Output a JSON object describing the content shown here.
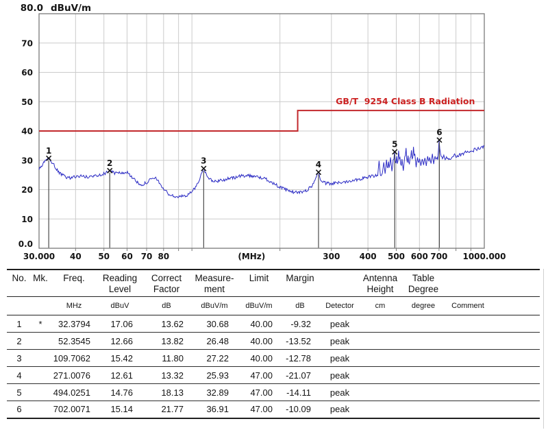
{
  "chart_data": {
    "type": "line",
    "title": "",
    "y_axis": {
      "label_top": "80.0",
      "unit": "dBuV/m",
      "min": 0,
      "max": 80,
      "step": 10,
      "tick_labels": [
        "70",
        "60",
        "50",
        "40",
        "30",
        "20",
        "10"
      ],
      "zero_label": "0.0"
    },
    "x_axis": {
      "scale": "log",
      "min": 30,
      "max": 1000,
      "unit_label": "(MHz)",
      "unit_label_freq": 160,
      "ticks": [
        {
          "f": 30,
          "label": "30.000"
        },
        {
          "f": 40,
          "label": "40"
        },
        {
          "f": 50,
          "label": "50"
        },
        {
          "f": 60,
          "label": "60"
        },
        {
          "f": 70,
          "label": "70"
        },
        {
          "f": 80,
          "label": "80"
        },
        {
          "f": 300,
          "label": "300"
        },
        {
          "f": 400,
          "label": "400"
        },
        {
          "f": 500,
          "label": "500"
        },
        {
          "f": 600,
          "label": "600"
        },
        {
          "f": 700,
          "label": "700"
        },
        {
          "f": 1000,
          "label": "1000.000"
        }
      ],
      "grid_freqs": [
        40,
        50,
        60,
        70,
        80,
        90,
        100,
        200,
        300,
        400,
        500,
        600,
        700,
        800,
        900
      ]
    },
    "grid": true,
    "limit_line": {
      "label": "GB/T  9254 Class B Radiation",
      "color": "#c2282c",
      "label_color": "#cc2222",
      "segments": [
        {
          "from": 30,
          "to": 230,
          "level": 40
        },
        {
          "from": 230,
          "to": 1000,
          "level": 47
        }
      ]
    },
    "trace": {
      "color": "#2b2bc4",
      "noise_db": 0.55,
      "anchors": [
        [
          30,
          26.8
        ],
        [
          31.3,
          29.3
        ],
        [
          32.38,
          30.68
        ],
        [
          33.6,
          28.6
        ],
        [
          35,
          25.8
        ],
        [
          36.5,
          24.6
        ],
        [
          38,
          24.0
        ],
        [
          40,
          24.4
        ],
        [
          42,
          24.7
        ],
        [
          44,
          24.2
        ],
        [
          46,
          24.6
        ],
        [
          48,
          25.1
        ],
        [
          50,
          25.4
        ],
        [
          52.35,
          26.48
        ],
        [
          54,
          25.7
        ],
        [
          56,
          25.6
        ],
        [
          58,
          25.8
        ],
        [
          60,
          25.9
        ],
        [
          62,
          24.6
        ],
        [
          64,
          23.0
        ],
        [
          66,
          22.0
        ],
        [
          68,
          21.8
        ],
        [
          70,
          22.4
        ],
        [
          72,
          23.3
        ],
        [
          74,
          23.9
        ],
        [
          76,
          23.6
        ],
        [
          78,
          21.8
        ],
        [
          80,
          20.2
        ],
        [
          83,
          18.6
        ],
        [
          86,
          17.8
        ],
        [
          90,
          17.5
        ],
        [
          94,
          17.8
        ],
        [
          98,
          18.6
        ],
        [
          102,
          20.2
        ],
        [
          106,
          23.4
        ],
        [
          109.7,
          27.22
        ],
        [
          112,
          25.2
        ],
        [
          116,
          23.2
        ],
        [
          120,
          22.8
        ],
        [
          126,
          23.2
        ],
        [
          133,
          23.7
        ],
        [
          140,
          24.1
        ],
        [
          147,
          24.6
        ],
        [
          154,
          24.9
        ],
        [
          161,
          24.7
        ],
        [
          170,
          24.2
        ],
        [
          180,
          23.5
        ],
        [
          190,
          22.2
        ],
        [
          200,
          20.8
        ],
        [
          210,
          19.9
        ],
        [
          220,
          19.3
        ],
        [
          230,
          19.0
        ],
        [
          240,
          19.3
        ],
        [
          250,
          20.1
        ],
        [
          258,
          21.5
        ],
        [
          264,
          23.5
        ],
        [
          271,
          25.9
        ],
        [
          275,
          23.6
        ],
        [
          280,
          22.6
        ],
        [
          288,
          22.1
        ],
        [
          298,
          22.0
        ],
        [
          310,
          22.2
        ],
        [
          325,
          22.5
        ],
        [
          342,
          22.9
        ],
        [
          360,
          23.3
        ],
        [
          380,
          23.8
        ],
        [
          400,
          24.3
        ],
        [
          425,
          24.8
        ],
        [
          450,
          25.3
        ],
        [
          475,
          25.8
        ],
        [
          500,
          26.3
        ],
        [
          525,
          26.7
        ],
        [
          550,
          27.1
        ],
        [
          575,
          27.6
        ],
        [
          600,
          28.0
        ],
        [
          630,
          28.5
        ],
        [
          660,
          29.0
        ],
        [
          690,
          29.5
        ],
        [
          720,
          30.0
        ],
        [
          750,
          30.5
        ],
        [
          780,
          31.0
        ],
        [
          815,
          31.6
        ],
        [
          850,
          32.2
        ],
        [
          885,
          32.8
        ],
        [
          920,
          33.4
        ],
        [
          955,
          34.0
        ],
        [
          1000,
          34.8
        ]
      ],
      "spikes": [
        [
          436,
          29.8
        ],
        [
          452,
          29.3
        ],
        [
          464,
          30.2
        ],
        [
          470,
          29.6
        ],
        [
          479,
          31.0
        ],
        [
          487,
          30.2
        ],
        [
          501,
          31.4
        ],
        [
          508,
          33.3
        ],
        [
          515,
          31.0
        ],
        [
          524,
          30.4
        ],
        [
          533,
          31.2
        ],
        [
          541,
          34.2
        ],
        [
          549,
          31.6
        ],
        [
          556,
          30.9
        ],
        [
          563,
          33.4
        ],
        [
          571,
          34.6
        ],
        [
          580,
          32.2
        ],
        [
          590,
          31.0
        ],
        [
          602,
          30.6
        ],
        [
          614,
          30.4
        ],
        [
          628,
          30.8
        ],
        [
          641,
          31.4
        ],
        [
          652,
          31.0
        ],
        [
          665,
          32.2
        ],
        [
          678,
          31.4
        ],
        [
          690,
          31.0
        ],
        [
          709,
          32.4
        ],
        [
          716,
          31.3
        ],
        [
          728,
          31.8
        ],
        [
          742,
          31.2
        ],
        [
          790,
          32.2
        ],
        [
          860,
          33.2
        ],
        [
          930,
          34.2
        ]
      ]
    },
    "markers": [
      {
        "no": "1",
        "freq": 32.3794,
        "value": 30.68
      },
      {
        "no": "2",
        "freq": 52.3545,
        "value": 26.48
      },
      {
        "no": "3",
        "freq": 109.7062,
        "value": 27.22
      },
      {
        "no": "4",
        "freq": 271.0076,
        "value": 25.93
      },
      {
        "no": "5",
        "freq": 494.0251,
        "value": 32.89
      },
      {
        "no": "6",
        "freq": 702.0071,
        "value": 36.91
      }
    ]
  },
  "table": {
    "columns": [
      {
        "id": "no",
        "header": "No.",
        "unit": ""
      },
      {
        "id": "mk",
        "header": "Mk.",
        "unit": ""
      },
      {
        "id": "freq",
        "header": "Freq.",
        "unit": "MHz"
      },
      {
        "id": "reading-level",
        "header": "Reading\nLevel",
        "unit": "dBuV"
      },
      {
        "id": "correct-factor",
        "header": "Correct\nFactor",
        "unit": "dB"
      },
      {
        "id": "measurement",
        "header": "Measure-\nment",
        "unit": "dBuV/m"
      },
      {
        "id": "limit",
        "header": "Limit",
        "unit": "dBuV/m"
      },
      {
        "id": "margin",
        "header": "Margin",
        "unit": "dB"
      },
      {
        "id": "detector",
        "header": "",
        "unit": "Detector"
      },
      {
        "id": "antenna-height",
        "header": "Antenna\nHeight",
        "unit": "cm"
      },
      {
        "id": "table-degree",
        "header": "Table\nDegree",
        "unit": "degree"
      },
      {
        "id": "comment",
        "header": "",
        "unit": "Comment"
      }
    ],
    "rows": [
      [
        "1",
        "*",
        "32.3794",
        "17.06",
        "13.62",
        "30.68",
        "40.00",
        "-9.32",
        "peak",
        "",
        "",
        ""
      ],
      [
        "2",
        "",
        "52.3545",
        "12.66",
        "13.82",
        "26.48",
        "40.00",
        "-13.52",
        "peak",
        "",
        "",
        ""
      ],
      [
        "3",
        "",
        "109.7062",
        "15.42",
        "11.80",
        "27.22",
        "40.00",
        "-12.78",
        "peak",
        "",
        "",
        ""
      ],
      [
        "4",
        "",
        "271.0076",
        "12.61",
        "13.32",
        "25.93",
        "47.00",
        "-21.07",
        "peak",
        "",
        "",
        ""
      ],
      [
        "5",
        "",
        "494.0251",
        "14.76",
        "18.13",
        "32.89",
        "47.00",
        "-14.11",
        "peak",
        "",
        "",
        ""
      ],
      [
        "6",
        "",
        "702.0071",
        "15.14",
        "21.77",
        "36.91",
        "47.00",
        "-10.09",
        "peak",
        "",
        "",
        ""
      ]
    ]
  }
}
